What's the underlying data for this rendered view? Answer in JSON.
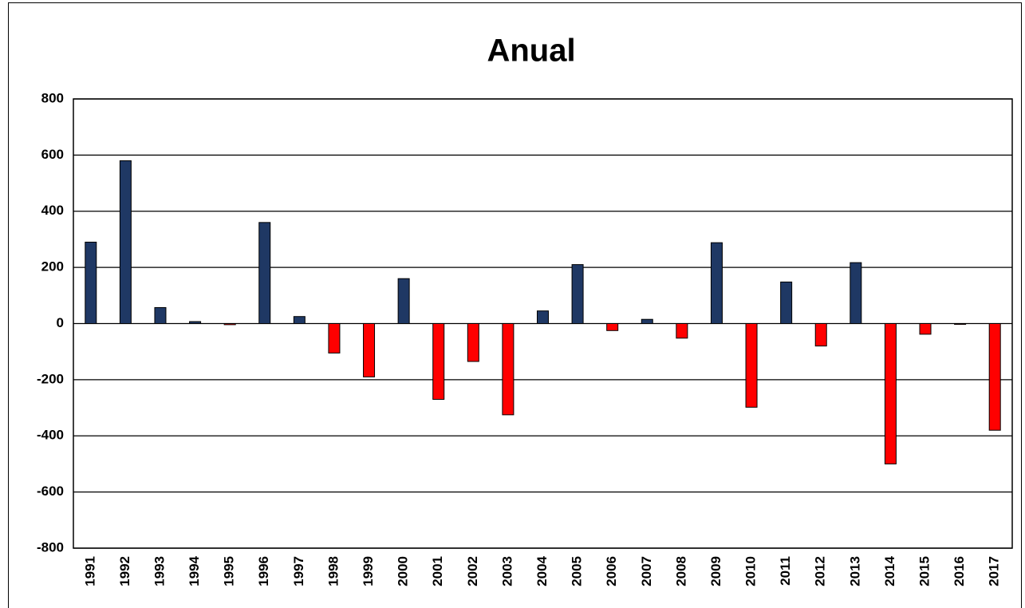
{
  "chart_data": {
    "type": "bar",
    "title": "Anual",
    "categories": [
      "1991",
      "1992",
      "1993",
      "1994",
      "1995",
      "1996",
      "1997",
      "1998",
      "1999",
      "2000",
      "2001",
      "2002",
      "2003",
      "2004",
      "2005",
      "2006",
      "2007",
      "2008",
      "2009",
      "2010",
      "2011",
      "2012",
      "2013",
      "2014",
      "2015",
      "2016",
      "2017"
    ],
    "values": [
      290,
      580,
      57,
      7,
      -4,
      360,
      25,
      -105,
      -190,
      160,
      -270,
      -135,
      -325,
      45,
      210,
      -25,
      15,
      -52,
      288,
      -298,
      148,
      -80,
      217,
      -500,
      -38,
      -3,
      -380
    ],
    "positive_color": "#1f3864",
    "negative_color": "#ff0000",
    "ylim": [
      -800,
      800
    ],
    "yticks": [
      -800,
      -600,
      -400,
      -200,
      0,
      200,
      400,
      600,
      800
    ],
    "grid": true
  }
}
